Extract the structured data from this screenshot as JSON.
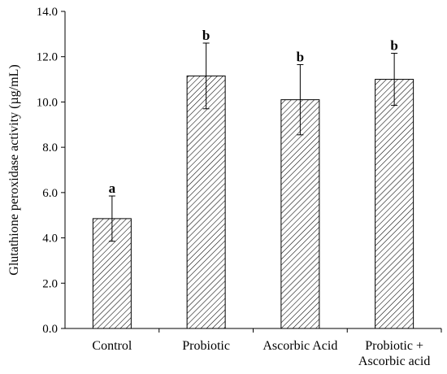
{
  "chart_data": {
    "type": "bar",
    "title": "",
    "ylabel": "Glutathione peroxidase activity (µg/mL)",
    "xlabel": "",
    "ylim": [
      0,
      14
    ],
    "yticks": [
      "0.0",
      "2.0",
      "4.0",
      "6.0",
      "8.0",
      "10.0",
      "12.0",
      "14.0"
    ],
    "categories": [
      [
        "Control"
      ],
      [
        "Probiotic"
      ],
      [
        "Ascorbic Acid"
      ],
      [
        "Probiotic +",
        "Ascorbic acid"
      ]
    ],
    "values": [
      4.85,
      11.15,
      10.1,
      11.0
    ],
    "errors": [
      1.0,
      1.45,
      1.55,
      1.15
    ],
    "significance_letters": [
      "a",
      "b",
      "b",
      "b"
    ],
    "bar_fill": "hatched",
    "grid": false,
    "legend": "none"
  }
}
